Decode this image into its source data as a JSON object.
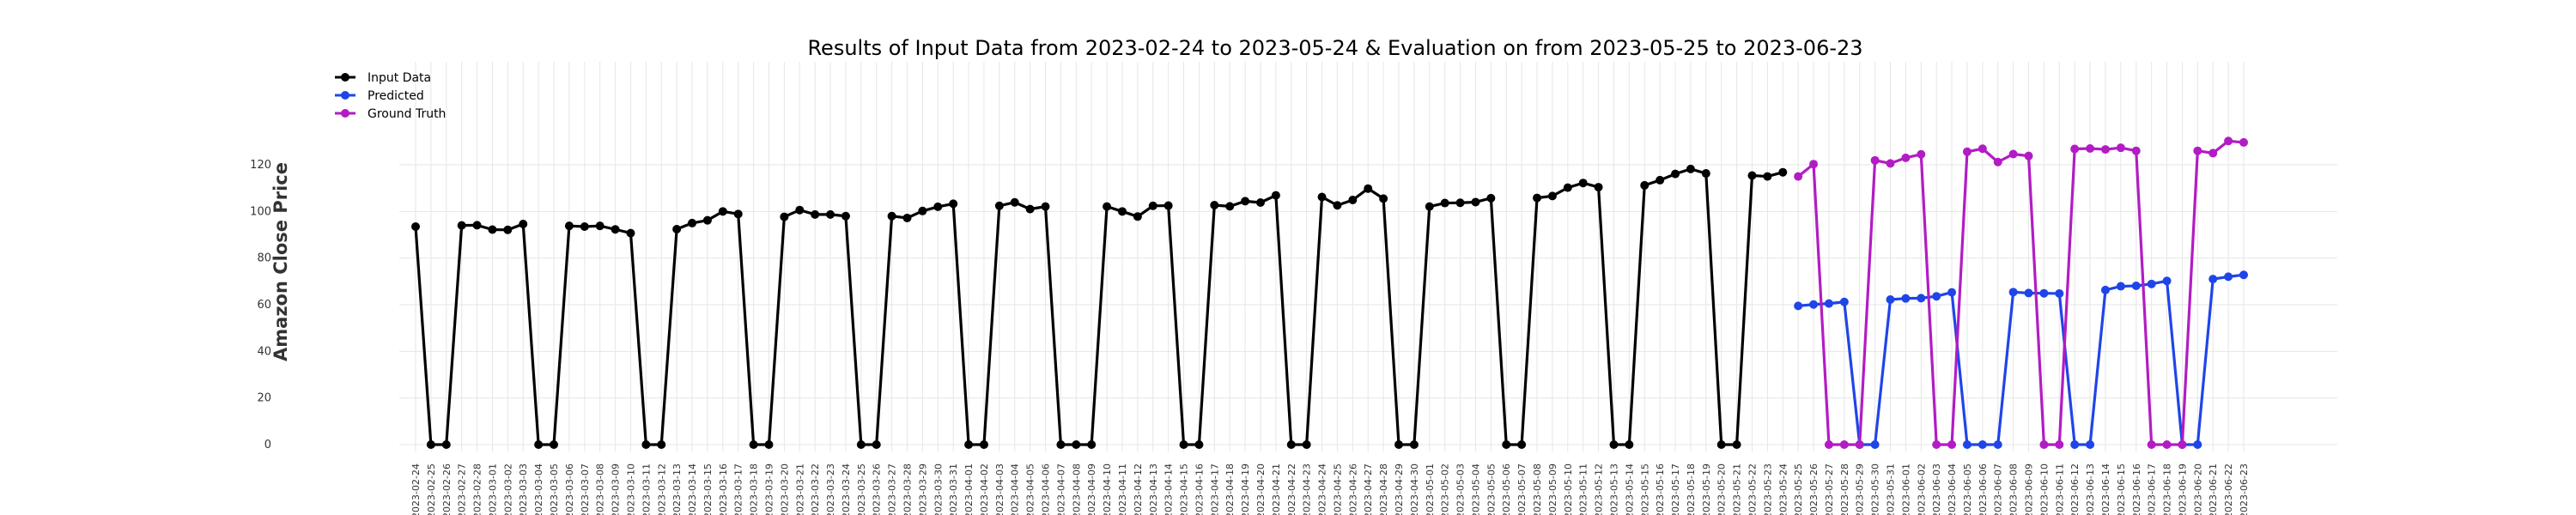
{
  "chart_data": {
    "type": "line",
    "title": "Results of Input Data from 2023-02-24 to 2023-05-24 & Evaluation on from 2023-05-25 to 2023-06-23",
    "xlabel": "",
    "ylabel": "Amazon Close Price",
    "ylim": [
      -8,
      138
    ],
    "yticks": [
      0,
      20,
      40,
      60,
      80,
      100,
      120
    ],
    "grid": true,
    "legend_position": "top-left",
    "series": [
      {
        "name": "Input Data",
        "color": "#000000",
        "start": "2023-02-24",
        "values": [
          93.5,
          0,
          0,
          94.0,
          94.1,
          92.2,
          92.1,
          94.6,
          0,
          0,
          93.8,
          93.5,
          93.8,
          92.3,
          90.7,
          0,
          0,
          92.4,
          95.0,
          96.2,
          100.0,
          98.9,
          0,
          0,
          97.7,
          100.6,
          98.7,
          98.7,
          98.0,
          0,
          0,
          98.0,
          97.2,
          100.2,
          102.0,
          103.3,
          0,
          0,
          102.4,
          103.9,
          101.0,
          102.1,
          0,
          0,
          0,
          102.1,
          100.0,
          97.8,
          102.4,
          102.5,
          0,
          0,
          102.7,
          102.2,
          104.4,
          103.8,
          106.9,
          0,
          0,
          106.2,
          102.6,
          104.9,
          109.8,
          105.5,
          0,
          0,
          102.1,
          103.6,
          103.7,
          104.0,
          105.7,
          0,
          0,
          105.8,
          106.6,
          110.2,
          112.2,
          110.4,
          0,
          0,
          111.2,
          113.4,
          116.1,
          118.2,
          116.3,
          0,
          0,
          115.4,
          115.0,
          116.8
        ]
      },
      {
        "name": "Predicted",
        "color": "#1f45e8",
        "start": "2023-05-25",
        "values": [
          59.5,
          60.1,
          60.5,
          61.2,
          0,
          0,
          62.2,
          62.7,
          62.8,
          63.6,
          65.3,
          0,
          0,
          0,
          65.4,
          65.0,
          64.9,
          64.8,
          0,
          0,
          66.3,
          67.9,
          68.1,
          68.9,
          70.2,
          0,
          0,
          71.0,
          72.0,
          72.8
        ]
      },
      {
        "name": "Ground Truth",
        "color": "#b21cc4",
        "start": "2023-05-25",
        "values": [
          115.0,
          120.3,
          0,
          0,
          0,
          121.9,
          120.6,
          123.0,
          124.5,
          0,
          0,
          125.6,
          126.9,
          121.2,
          124.6,
          123.8,
          0,
          0,
          126.8,
          127.0,
          126.6,
          127.3,
          126.0,
          0,
          0,
          0,
          126.0,
          125.0,
          130.2,
          129.6
        ]
      }
    ],
    "x_tick_labels": [
      "2023-02-24",
      "2023-02-25",
      "2023-02-26",
      "2023-02-27",
      "2023-02-28",
      "2023-03-01",
      "2023-03-02",
      "2023-03-03",
      "2023-03-04",
      "2023-03-05",
      "2023-03-06",
      "2023-03-07",
      "2023-03-08",
      "2023-03-09",
      "2023-03-10",
      "2023-03-11",
      "2023-03-12",
      "2023-03-13",
      "2023-03-14",
      "2023-03-15",
      "2023-03-16",
      "2023-03-17",
      "2023-03-18",
      "2023-03-19",
      "2023-03-20",
      "2023-03-21",
      "2023-03-22",
      "2023-03-23",
      "2023-03-24",
      "2023-03-25",
      "2023-03-26",
      "2023-03-27",
      "2023-03-28",
      "2023-03-29",
      "2023-03-30",
      "2023-03-31",
      "2023-04-01",
      "2023-04-02",
      "2023-04-03",
      "2023-04-04",
      "2023-04-05",
      "2023-04-06",
      "2023-04-07",
      "2023-04-08",
      "2023-04-09",
      "2023-04-10",
      "2023-04-11",
      "2023-04-12",
      "2023-04-13",
      "2023-04-14",
      "2023-04-15",
      "2023-04-16",
      "2023-04-17",
      "2023-04-18",
      "2023-04-19",
      "2023-04-20",
      "2023-04-21",
      "2023-04-22",
      "2023-04-23",
      "2023-04-24",
      "2023-04-25",
      "2023-04-26",
      "2023-04-27",
      "2023-04-28",
      "2023-04-29",
      "2023-04-30",
      "2023-05-01",
      "2023-05-02",
      "2023-05-03",
      "2023-05-04",
      "2023-05-05",
      "2023-05-06",
      "2023-05-07",
      "2023-05-08",
      "2023-05-09",
      "2023-05-10",
      "2023-05-11",
      "2023-05-12",
      "2023-05-13",
      "2023-05-14",
      "2023-05-15",
      "2023-05-16",
      "2023-05-17",
      "2023-05-18",
      "2023-05-19",
      "2023-05-20",
      "2023-05-21",
      "2023-05-22",
      "2023-05-23",
      "2023-05-24",
      "2023-05-25",
      "2023-05-26",
      "2023-05-27",
      "2023-05-28",
      "2023-05-29",
      "2023-05-30",
      "2023-05-31",
      "2023-06-01",
      "2023-06-02",
      "2023-06-03",
      "2023-06-04",
      "2023-06-05",
      "2023-06-06",
      "2023-06-07",
      "2023-06-08",
      "2023-06-09",
      "2023-06-10",
      "2023-06-11",
      "2023-06-12",
      "2023-06-13",
      "2023-06-14",
      "2023-06-15",
      "2023-06-16",
      "2023-06-17",
      "2023-06-18",
      "2023-06-19",
      "2023-06-20",
      "2023-06-21",
      "2023-06-22",
      "2023-06-23"
    ]
  }
}
